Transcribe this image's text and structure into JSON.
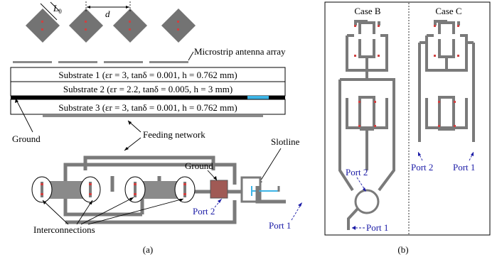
{
  "labels": {
    "l0": "L",
    "l0_sub": "0",
    "d": "d",
    "antenna_array": "Microstrip antenna array",
    "substrate1": "Substrate 1 (εr = 3, tanδ = 0.001, h = 0.762 mm)",
    "substrate2": "Substrate 2 (εr = 2.2, tanδ = 0.005, h = 3 mm)",
    "substrate3": "Substrate 3 (εr = 3, tanδ = 0.001, h = 0.762 mm)",
    "ground": "Ground",
    "feeding_network": "Feeding network",
    "slotline": "Slotline",
    "ground_small": "Ground",
    "port2_a": "Port 2",
    "port1_a": "Port 1",
    "interconnections": "Interconnections",
    "caption_a": "(a)",
    "case_b": "Case B",
    "case_c": "Case C",
    "port2_b": "Port 2",
    "port1_b": "Port 1",
    "port2_c": "Port 2",
    "port1_c": "Port 1",
    "caption_b": "(b)"
  },
  "colors": {
    "patch": "#737373",
    "trace": "#7a7a7a",
    "feed_point": "#d04040",
    "slot": "#3cb4e6",
    "ground_patch": "#a05a55",
    "port_label": "#1a1aa6"
  }
}
